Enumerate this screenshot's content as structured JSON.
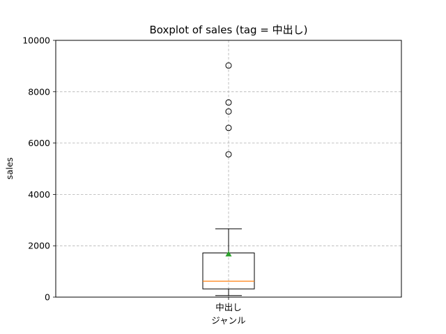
{
  "chart_data": {
    "type": "boxplot",
    "title": "Boxplot of sales (tag = 中出し)",
    "xlabel": "ジャンル",
    "ylabel": "sales",
    "ylim": [
      0,
      10000
    ],
    "yticks": [
      0,
      2000,
      4000,
      6000,
      8000,
      10000
    ],
    "y_tick_labels": [
      "0",
      "2000",
      "4000",
      "6000",
      "8000",
      "10000"
    ],
    "categories": [
      "中出し"
    ],
    "grid": true,
    "boxes": [
      {
        "category": "中出し",
        "whisker_low": 60,
        "q1": 320,
        "median": 620,
        "q3": 1720,
        "whisker_high": 2660,
        "mean": 1680,
        "outliers": [
          5560,
          6590,
          7230,
          7580,
          9020
        ]
      }
    ],
    "colors": {
      "median": "#ff7f0e",
      "mean": "#2ca02c",
      "box": "#000000",
      "grid": "#b0b0b0"
    }
  }
}
